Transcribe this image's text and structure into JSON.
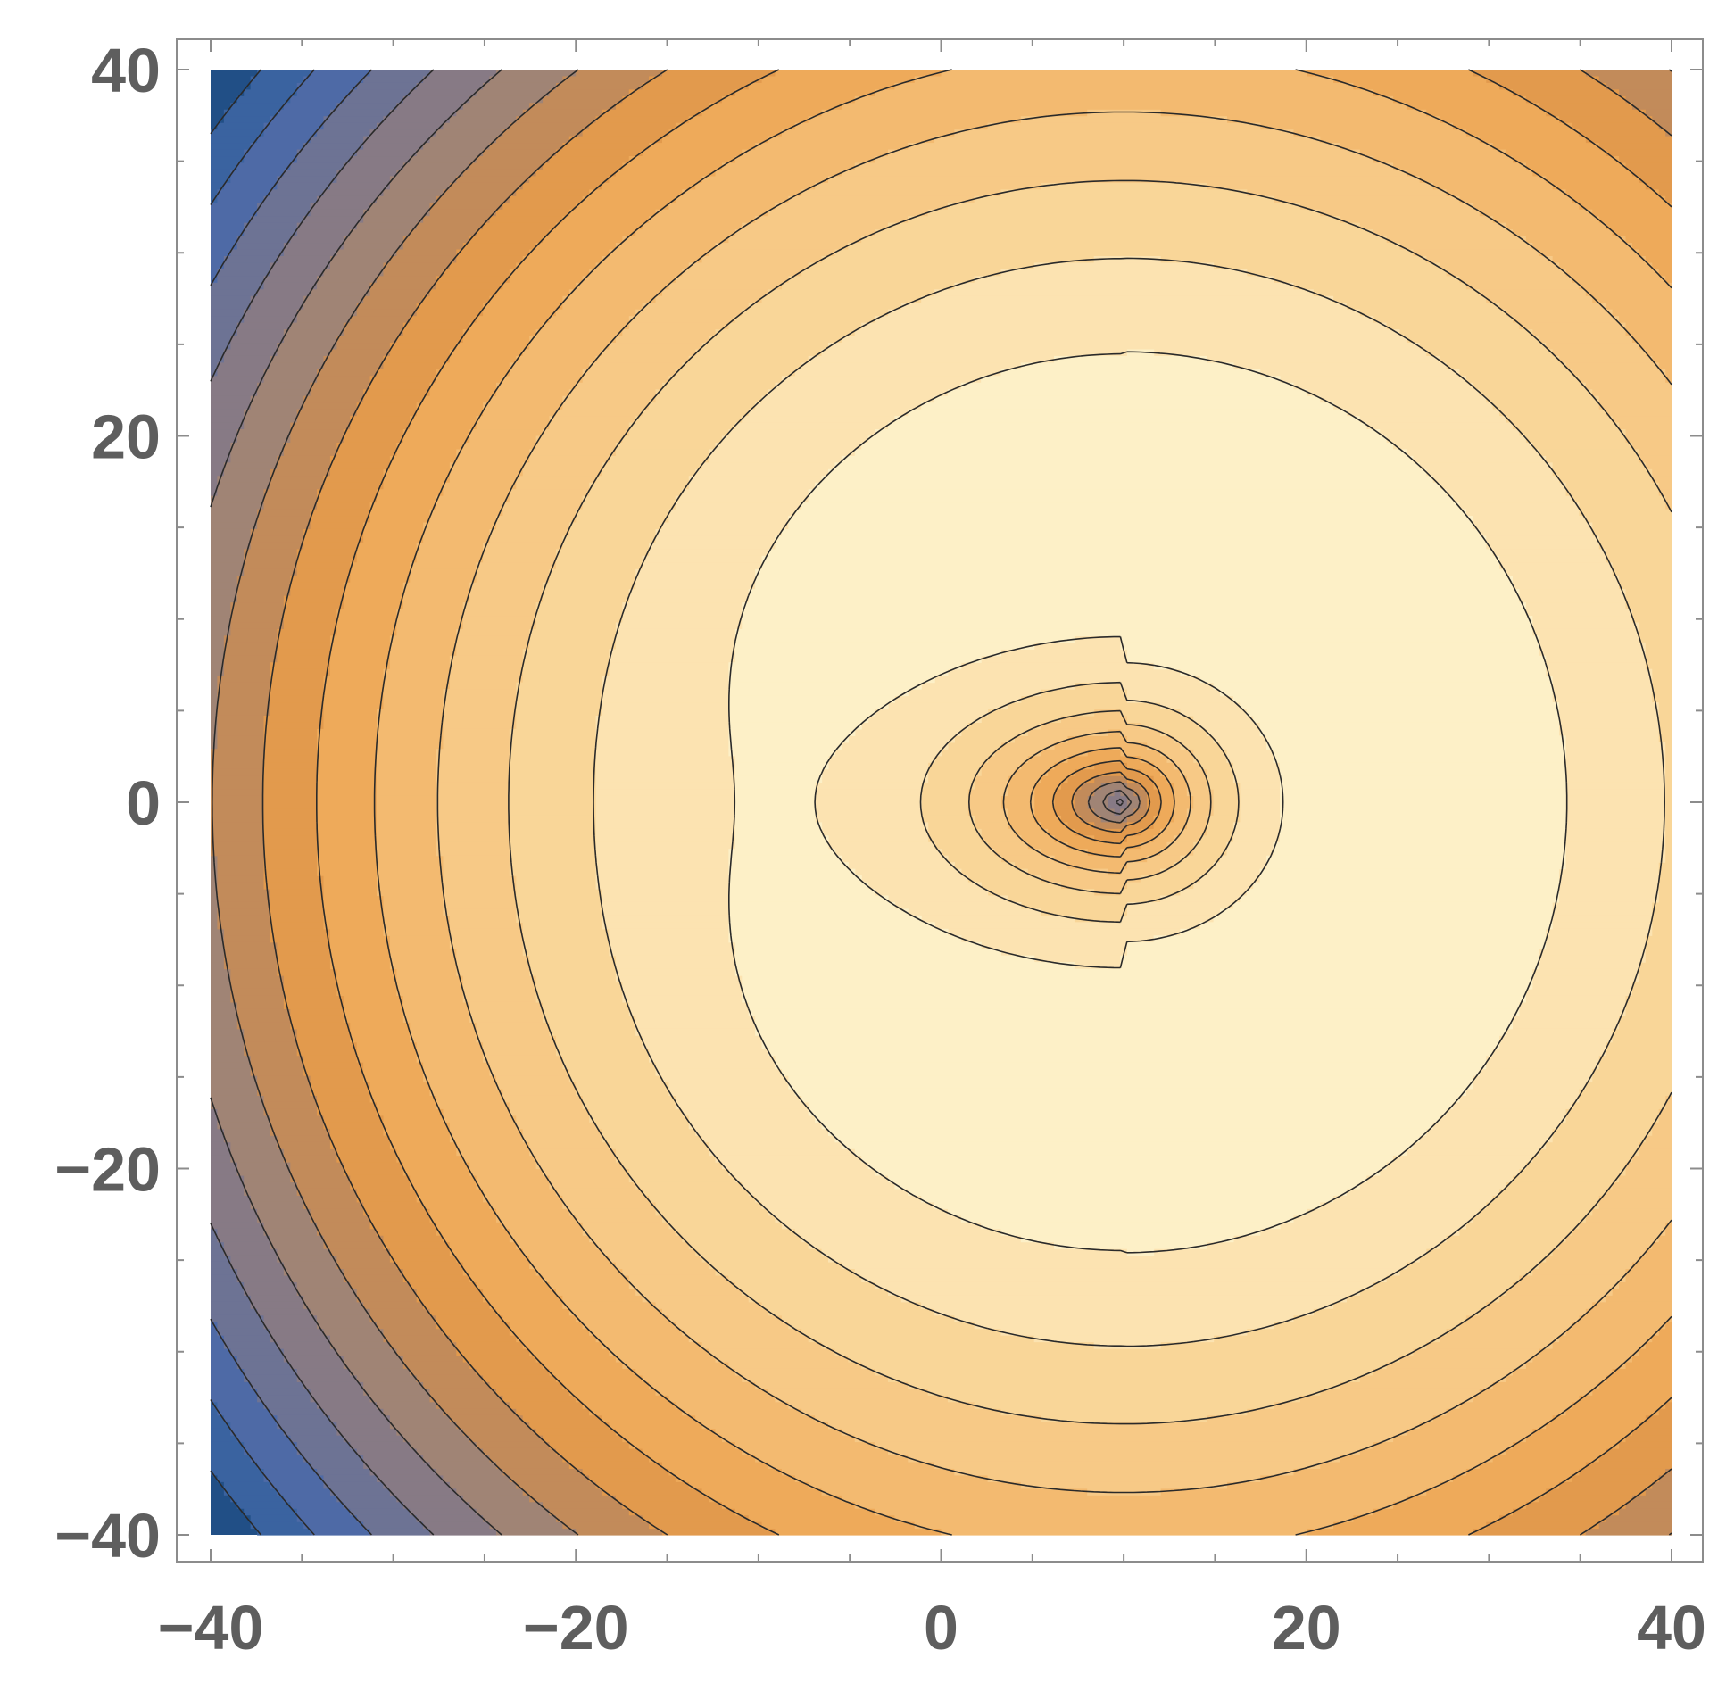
{
  "chart_data": {
    "type": "contour",
    "title": "",
    "xlabel": "",
    "ylabel": "",
    "xlim": [
      -40,
      40
    ],
    "ylim": [
      -40,
      40
    ],
    "x_ticks": [
      -40,
      -20,
      0,
      20,
      40
    ],
    "y_ticks": [
      -40,
      -20,
      0,
      20,
      40
    ],
    "x_tick_labels": [
      "−40",
      "−20",
      "0",
      "20",
      "40"
    ],
    "y_tick_labels": [
      "−40",
      "−20",
      "0",
      "20",
      "40"
    ],
    "minor_tick_step": 5,
    "grid": false,
    "legend": "none",
    "color_scheme": "blue-to-cream",
    "field_description": {
      "broad_peak": {
        "center": [
          10,
          0
        ],
        "shape": "radially symmetric hump decreasing outward"
      },
      "central_dip": {
        "center": [
          10,
          0
        ],
        "shape": "sharp minimum at center, distorted toward negative x"
      }
    },
    "contour_levels": 14,
    "level_colors": [
      "#214f86",
      "#3a63a0",
      "#4e6aa6",
      "#6d7394",
      "#877a85",
      "#a08475",
      "#c28b5a",
      "#e29a4d",
      "#eeaa5a",
      "#f3ba70",
      "#f7c986",
      "#f9d698",
      "#fce3b1",
      "#fdf0c7"
    ],
    "contour_line_color": "#2a2a2a"
  }
}
